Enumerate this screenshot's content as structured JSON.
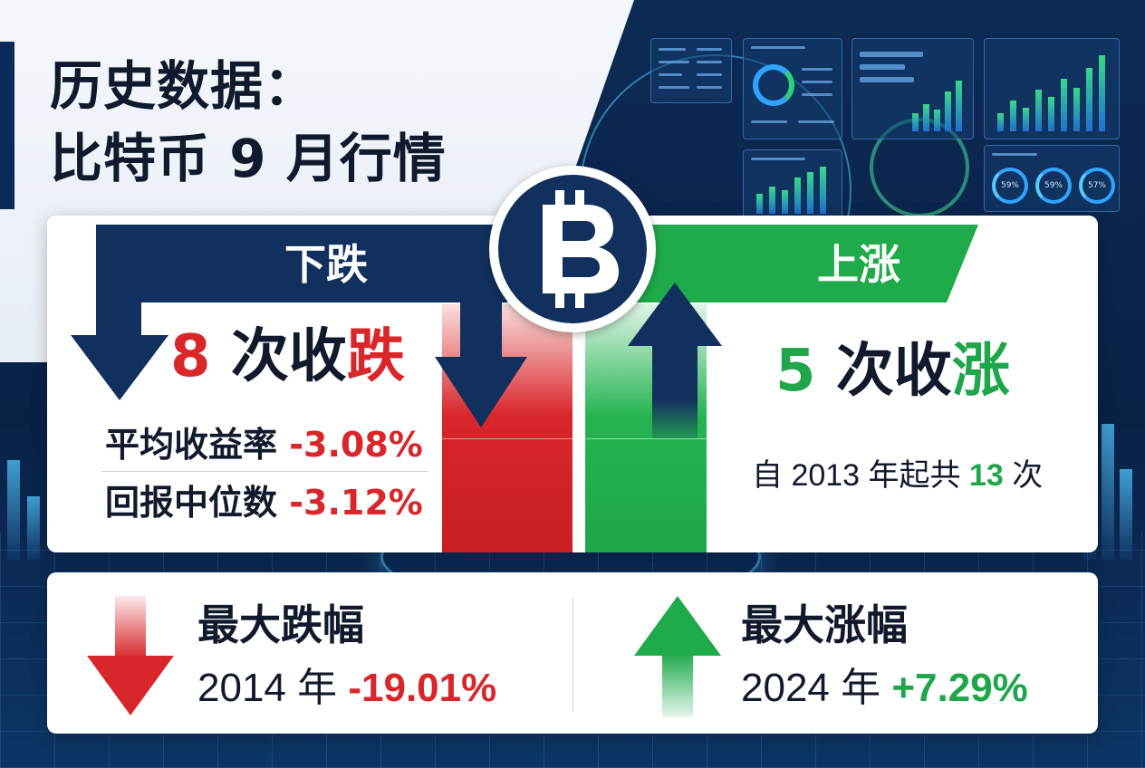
{
  "title": {
    "line1": "历史数据：",
    "line2": "比特币 9 月行情"
  },
  "down": {
    "banner": "下跌",
    "count_num": "8",
    "count_pre": " 次收",
    "count_word": "跌",
    "avg_label": "平均收益率",
    "avg_value": "-3.08%",
    "median_label": "回报中位数",
    "median_value": "-3.12%"
  },
  "up": {
    "banner": "上涨",
    "count_num": "5",
    "count_pre": " 次收",
    "count_word": "涨",
    "since_pre": "自 2013 年起共 ",
    "since_num": "13",
    "since_post": " 次"
  },
  "max_drop": {
    "label": "最大跌幅",
    "year": "2014 年 ",
    "value": "-19.01%"
  },
  "max_gain": {
    "label": "最大涨幅",
    "year": "2024 年 ",
    "value": "+7.29%"
  },
  "icons": {
    "coin": "bitcoin-icon",
    "down": "arrow-down-icon",
    "up": "arrow-up-icon"
  },
  "colors": {
    "navy": "#12305e",
    "red": "#d8262a",
    "green": "#1fab4b"
  }
}
